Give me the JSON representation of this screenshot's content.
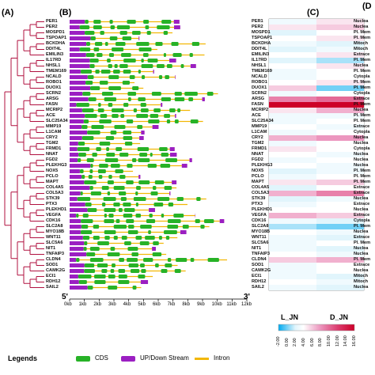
{
  "panels": {
    "a": "(A)",
    "b": "(B)",
    "c": "(C)",
    "d": "(D"
  },
  "genes": [
    "PER1",
    "PER2",
    "MOSPD1",
    "TSPOAP1",
    "BCKDHA",
    "DDIT4L",
    "EMILIN3",
    "IL17RD",
    "NHSL1",
    "TMEM169",
    "NCALD",
    "ROBO1",
    "DUOX1",
    "SCRN2",
    "ARSG",
    "FASN",
    "MCRIP2",
    "ACE",
    "SLC25A34",
    "MMP19",
    "L1CAM",
    "CRY2",
    "TGM2",
    "FRMD1",
    "NNAT",
    "FGD2",
    "PLEKHG3",
    "NOX5",
    "PCLO",
    "MAPT",
    "COL4A5",
    "COL5A3",
    "STK39",
    "PTX3",
    "PLEKHD1",
    "VEGFA",
    "CDK16",
    "SLC2A8",
    "MYO18B",
    "WNT11",
    "SLC5A6",
    "NIT1",
    "TNFAIP3",
    "CLDN4",
    "SOD1",
    "CAMK2G",
    "ECI1",
    "RDH12",
    "SAIL2"
  ],
  "locations": [
    "Nuclea",
    "Nuclea",
    "Pl. Mem",
    "Pl. Mem",
    "Mitoch",
    "Mitoch",
    "Extrace",
    "Pl. Mem",
    "Nuclea",
    "Pl. Mem",
    "Cytopla",
    "Pl. Mem",
    "Pl. Mem",
    "Cytopla",
    "Extrace",
    "Pl. Mem",
    "Nuclea",
    "Pl. Mem",
    "Pl. Mem",
    "Extrace",
    "Cytopla",
    "Nuclea",
    "Nuclea",
    "Cytopla",
    "Nuclea",
    "Nuclea",
    "Nuclea",
    "Pl. Mem",
    "Pl. Mem",
    "Pl. Mem",
    "Extrace",
    "Extrace",
    "Nuclea",
    "Extrace",
    "Nuclea",
    "Extrace",
    "Cytopla",
    "Pl. Mem",
    "Nuclea",
    "Extrace",
    "Pl. Mem",
    "Nuclea",
    "Nuclea",
    "Pl. Mem",
    "Extrace",
    "Nuclea",
    "Mitoch",
    "Mitoch",
    "Nuclea"
  ],
  "heat": {
    "columns": [
      "L_JN",
      "D_JN"
    ],
    "colorbar_ticks": [
      "-2.00",
      "0.00",
      "2.00",
      "4.00",
      "6.00",
      "8.00",
      "10.00",
      "12.00",
      "14.00",
      "16.00"
    ],
    "l": [
      3,
      5,
      2,
      4,
      3,
      2,
      4,
      2,
      4,
      3,
      3,
      4,
      6,
      3,
      9,
      16,
      5,
      3,
      3,
      4,
      3,
      7,
      3,
      5,
      4,
      3,
      4,
      2,
      3,
      5,
      2,
      7,
      2,
      3,
      4,
      7,
      3,
      1,
      4,
      3,
      3,
      3,
      4,
      6,
      3,
      3,
      3,
      4,
      3
    ],
    "d": [
      5,
      6,
      4,
      5,
      2,
      3,
      5,
      1,
      5,
      4,
      4,
      5,
      0,
      4,
      10,
      16,
      7,
      3,
      4,
      3,
      4,
      8,
      4,
      4,
      3,
      4,
      3,
      3,
      4,
      6,
      4,
      9,
      3,
      4,
      4,
      6,
      2,
      0,
      3,
      2,
      4,
      2,
      3,
      7,
      4,
      4,
      2,
      3,
      2
    ]
  },
  "structure_axis": {
    "ticks": [
      "0kb",
      "1kb",
      "2kb",
      "3kb",
      "4kb",
      "5kb",
      "6kb",
      "7kb",
      "8kb",
      "9kb",
      "10kb",
      "11kb",
      "12kb"
    ],
    "left_end": "5'",
    "right_end": "3'"
  },
  "legend": {
    "title": "Legends",
    "cds": "CDS",
    "updown": "UP/Down Stream",
    "intron": "Intron",
    "colors": {
      "cds": "#27b227",
      "updown": "#9b1fc2",
      "intron": "#f2b705",
      "tree": "#b0103f"
    }
  }
}
